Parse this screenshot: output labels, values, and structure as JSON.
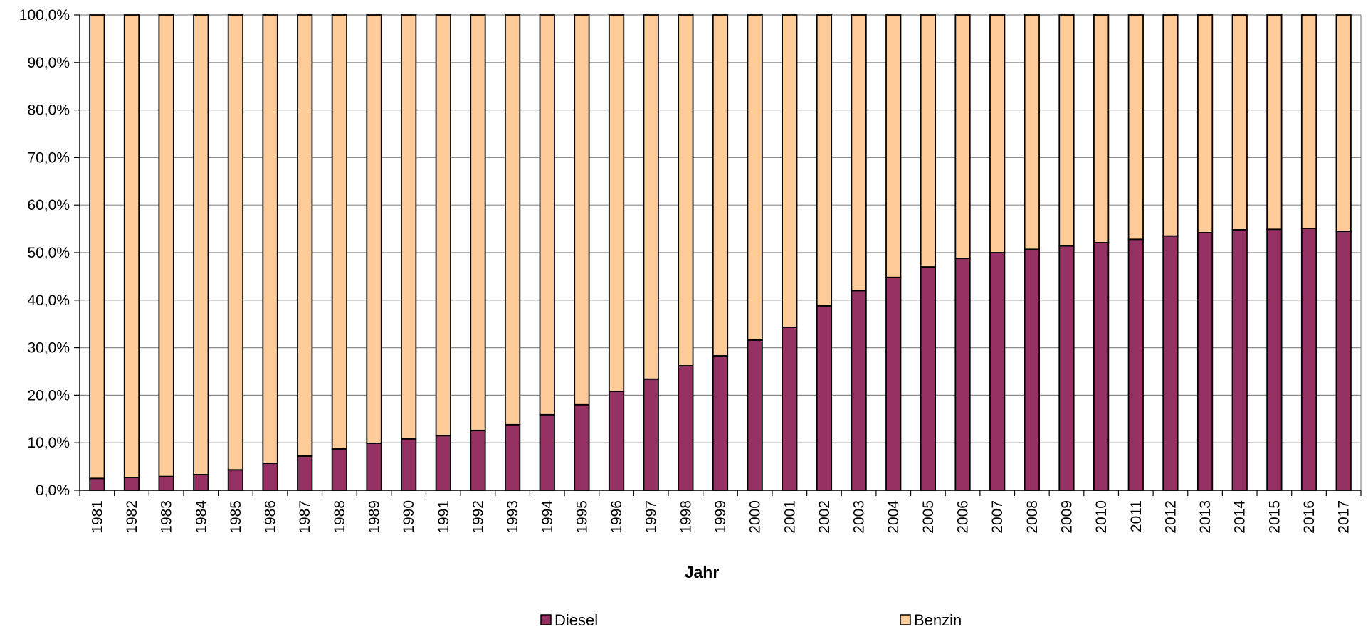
{
  "chart_data": {
    "type": "bar",
    "stacked": true,
    "title": "",
    "xlabel": "Jahr",
    "ylabel": "",
    "ylim": [
      0,
      100
    ],
    "y_ticks": [
      "0,0%",
      "10,0%",
      "20,0%",
      "30,0%",
      "40,0%",
      "50,0%",
      "60,0%",
      "70,0%",
      "80,0%",
      "90,0%",
      "100,0%"
    ],
    "y_tick_values": [
      0,
      10,
      20,
      30,
      40,
      50,
      60,
      70,
      80,
      90,
      100
    ],
    "grid": true,
    "legend_position": "bottom",
    "categories": [
      "1981",
      "1982",
      "1983",
      "1984",
      "1985",
      "1986",
      "1987",
      "1988",
      "1989",
      "1990",
      "1991",
      "1992",
      "1993",
      "1994",
      "1995",
      "1996",
      "1997",
      "1998",
      "1999",
      "2000",
      "2001",
      "2002",
      "2003",
      "2004",
      "2005",
      "2006",
      "2007",
      "2008",
      "2009",
      "2010",
      "2011",
      "2012",
      "2013",
      "2014",
      "2015",
      "2016",
      "2017"
    ],
    "series": [
      {
        "name": "Diesel",
        "color": "#953163",
        "values": [
          2.5,
          2.7,
          2.9,
          3.3,
          4.3,
          5.7,
          7.2,
          8.7,
          9.9,
          10.8,
          11.5,
          12.6,
          13.8,
          15.9,
          18.0,
          20.8,
          23.4,
          26.2,
          28.3,
          31.6,
          34.3,
          38.8,
          42.0,
          44.8,
          47.0,
          48.8,
          50.0,
          50.7,
          51.4,
          52.1,
          52.8,
          53.5,
          54.2,
          54.8,
          54.9,
          55.1,
          54.5
        ]
      },
      {
        "name": "Benzin",
        "color": "#FFCC99",
        "values": [
          97.5,
          97.3,
          97.1,
          96.7,
          95.7,
          94.3,
          92.8,
          91.3,
          90.1,
          89.2,
          88.5,
          87.4,
          86.2,
          84.1,
          82.0,
          79.2,
          76.6,
          73.8,
          71.7,
          68.4,
          65.7,
          61.2,
          58.0,
          55.2,
          53.0,
          51.2,
          50.0,
          49.3,
          48.6,
          47.9,
          47.2,
          46.5,
          45.8,
          45.2,
          45.1,
          44.9,
          45.5
        ]
      }
    ]
  }
}
